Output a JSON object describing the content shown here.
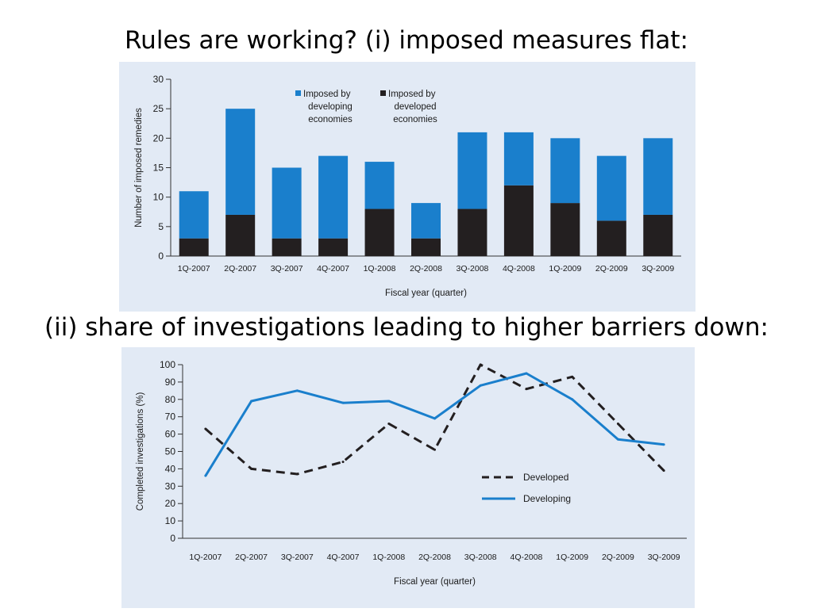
{
  "slide": {
    "title1": "Rules are working?  (i) imposed measures flat:",
    "title2": "(ii) share of investigations leading to higher barriers down:"
  },
  "colors": {
    "panel_background": "#e2eaf5",
    "developing": "#1a7fcc",
    "developed": "#231f20"
  },
  "chart_data": [
    {
      "type": "bar",
      "stacked": true,
      "xlabel": "Fiscal year (quarter)",
      "ylabel": "Number of imposed remedies",
      "ylim": [
        0,
        30
      ],
      "yticks": [
        0,
        5,
        10,
        15,
        20,
        25,
        30
      ],
      "categories": [
        "1Q-2007",
        "2Q-2007",
        "3Q-2007",
        "4Q-2007",
        "1Q-2008",
        "2Q-2008",
        "3Q-2008",
        "4Q-2008",
        "1Q-2009",
        "2Q-2009",
        "3Q-2009"
      ],
      "series": [
        {
          "name": "Imposed by developed economies",
          "legend_lines": [
            "Imposed by",
            "developed",
            "economies"
          ],
          "color": "#231f20",
          "values": [
            3,
            7,
            3,
            3,
            8,
            3,
            8,
            12,
            9,
            6,
            7
          ]
        },
        {
          "name": "Imposed by developing economies",
          "legend_lines": [
            "Imposed by",
            "developing",
            "economies"
          ],
          "color": "#1a7fcc",
          "values": [
            8,
            18,
            12,
            14,
            8,
            6,
            13,
            9,
            11,
            11,
            13
          ]
        }
      ],
      "legend_position": "top-center",
      "grid": false
    },
    {
      "type": "line",
      "xlabel": "Fiscal year (quarter)",
      "ylabel": "Completed investigations (%)",
      "ylim": [
        0,
        100
      ],
      "yticks": [
        0,
        10,
        20,
        30,
        40,
        50,
        60,
        70,
        80,
        90,
        100
      ],
      "categories": [
        "1Q-2007",
        "2Q-2007",
        "3Q-2007",
        "4Q-2007",
        "1Q-2008",
        "2Q-2008",
        "3Q-2008",
        "4Q-2008",
        "1Q-2009",
        "2Q-2009",
        "3Q-2009"
      ],
      "series": [
        {
          "name": "Developed",
          "color": "#231f20",
          "dashed": true,
          "values": [
            63,
            40,
            37,
            44,
            66,
            51,
            100,
            86,
            93,
            66,
            39
          ]
        },
        {
          "name": "Developing",
          "color": "#1a7fcc",
          "dashed": false,
          "values": [
            36,
            79,
            85,
            78,
            79,
            69,
            88,
            95,
            80,
            57,
            54
          ]
        }
      ],
      "legend_position": "lower-right",
      "grid": false
    }
  ]
}
